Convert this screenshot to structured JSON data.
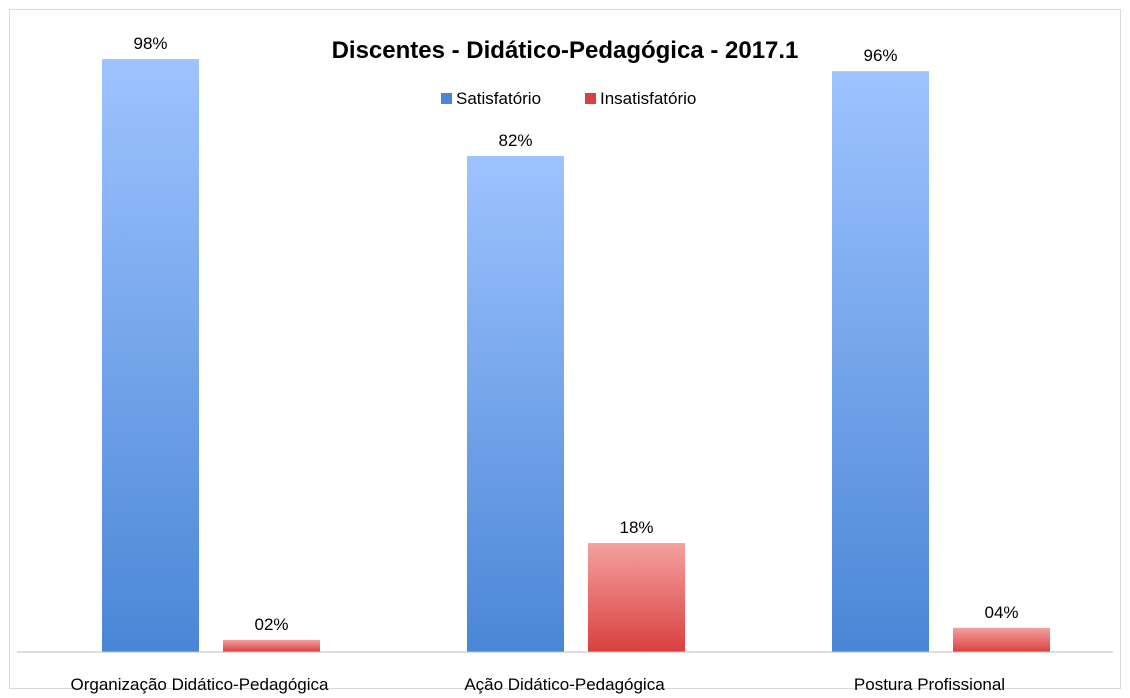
{
  "chart_data": {
    "type": "bar",
    "title": "Discentes - Didático-Pedagógica - 2017.1",
    "categories": [
      "Organização Didático-Pedagógica",
      "Ação Didático-Pedagógica",
      "Postura Profissional"
    ],
    "series": [
      {
        "name": "Satisfatório",
        "values": [
          98,
          82,
          96
        ],
        "labels": [
          "98%",
          "82%",
          "96%"
        ],
        "color": "#4a86d6",
        "color_light": "#9ec3ff"
      },
      {
        "name": "Insatisfatório",
        "values": [
          2,
          18,
          4
        ],
        "labels": [
          "02%",
          "18%",
          "04%"
        ],
        "color": "#d9403f",
        "color_light": "#f4a19f"
      }
    ],
    "ylim": [
      0,
      100
    ],
    "grid": false,
    "legend_position": "top"
  }
}
